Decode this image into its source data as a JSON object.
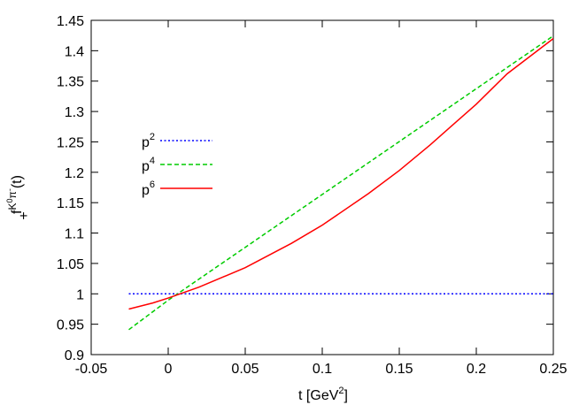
{
  "chart_data": {
    "type": "line",
    "xlabel": "t [GeV²]",
    "xlabel_parts": {
      "main": "t [GeV",
      "sup": "2",
      "tail": "]"
    },
    "ylabel_parts": {
      "f": "f",
      "sub": "+",
      "sup_k": "K",
      "sup_0": "0",
      "sup_pi": "π",
      "sup_minus": "-",
      "arg": "(t)"
    },
    "xlim": [
      -0.05,
      0.25
    ],
    "ylim": [
      0.9,
      1.45
    ],
    "xticks": [
      -0.05,
      0,
      0.05,
      0.1,
      0.15,
      0.2,
      0.25
    ],
    "xtick_labels": [
      "-0.05",
      "0",
      "0.05",
      "0.1",
      "0.15",
      "0.2",
      "0.25"
    ],
    "yticks": [
      0.9,
      0.95,
      1.0,
      1.05,
      1.1,
      1.15,
      1.2,
      1.25,
      1.3,
      1.35,
      1.4,
      1.45
    ],
    "ytick_labels": [
      "0.9",
      "0.95",
      "1",
      "1.05",
      "1.1",
      "1.15",
      "1.2",
      "1.25",
      "1.3",
      "1.35",
      "1.4",
      "1.45"
    ],
    "grid": false,
    "legend_position": "upper-left",
    "series": [
      {
        "name": "p2",
        "label_base": "p",
        "label_sup": "2",
        "color": "#0000ff",
        "style": "dotted",
        "x": [
          -0.0256,
          0.25
        ],
        "y": [
          1.0,
          1.0
        ]
      },
      {
        "name": "p4",
        "label_base": "p",
        "label_sup": "4",
        "color": "#00cc00",
        "style": "dashed",
        "x": [
          -0.0256,
          0.0,
          0.05,
          0.1,
          0.15,
          0.2,
          0.25
        ],
        "y": [
          0.941,
          0.9895,
          1.0765,
          1.1635,
          1.2505,
          1.3375,
          1.4245
        ]
      },
      {
        "name": "p6",
        "label_base": "p",
        "label_sup": "6",
        "color": "#ff0000",
        "style": "solid",
        "x": [
          -0.0256,
          -0.01,
          0.0,
          0.02,
          0.05,
          0.08,
          0.1,
          0.13,
          0.15,
          0.17,
          0.2,
          0.22,
          0.25
        ],
        "y": [
          0.975,
          0.985,
          0.993,
          1.011,
          1.043,
          1.083,
          1.113,
          1.165,
          1.203,
          1.245,
          1.312,
          1.362,
          1.42
        ]
      }
    ]
  }
}
